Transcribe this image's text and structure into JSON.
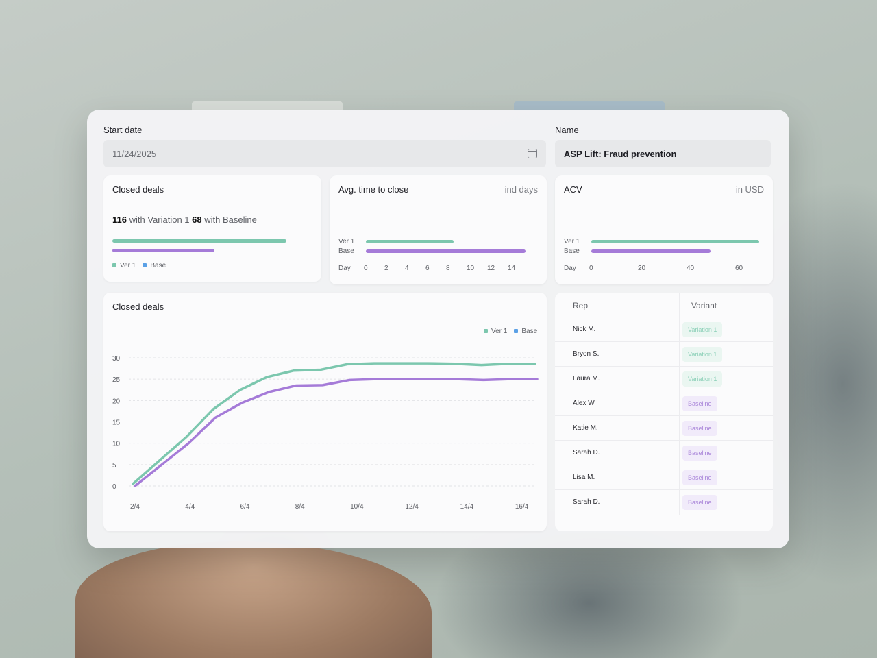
{
  "form": {
    "start_date_label": "Start date",
    "start_date_value": "11/24/2025",
    "name_label": "Name",
    "name_value": "ASP Lift: Fraud prevention"
  },
  "closed_deals_card": {
    "title": "Closed deals",
    "variation_count": "116",
    "variation_text": "with Variation 1",
    "baseline_count": "68",
    "baseline_text": "with Baseline",
    "legend": [
      "Ver 1",
      "Base"
    ],
    "ver1_fraction": 0.87,
    "base_fraction": 0.51
  },
  "avg_time_card": {
    "title": "Avg. time to close",
    "unit": "ind days",
    "row_labels": [
      "Ver 1",
      "Base"
    ],
    "axis_label": "Day",
    "ticks": [
      "0",
      "2",
      "4",
      "6",
      "8",
      "10",
      "12",
      "14"
    ],
    "ver1_value": 8.5,
    "base_value": 15.5
  },
  "acv_card": {
    "title": "ACV",
    "unit": "in USD",
    "row_labels": [
      "Ver 1",
      "Base"
    ],
    "axis_label": "Day",
    "ticks": [
      "0",
      "20",
      "40",
      "60"
    ],
    "ver1_value": 69,
    "base_value": 49
  },
  "chart_data": {
    "type": "line",
    "title": "Closed deals",
    "x": [
      "2/4",
      "3/4",
      "4/4",
      "5/4",
      "6/4",
      "7/4",
      "8/4",
      "9/4",
      "10/4",
      "11/4",
      "12/4",
      "13/4",
      "14/4",
      "15/4",
      "16/4",
      "17/4"
    ],
    "x_ticks": [
      "2/4",
      "4/4",
      "6/4",
      "8/4",
      "10/4",
      "12/4",
      "14/4",
      "16/4"
    ],
    "y_ticks": [
      "0",
      "5",
      "10",
      "15",
      "20",
      "25",
      "30"
    ],
    "ylim": [
      0,
      30
    ],
    "grid": true,
    "legend": "top-right",
    "series": [
      {
        "name": "Ver 1",
        "color": "#7cc7ae",
        "values": [
          0.5,
          6,
          11.5,
          18,
          22.5,
          25.5,
          27,
          27.2,
          28.5,
          28.7,
          28.7,
          28.7,
          28.6,
          28.3,
          28.6,
          28.6
        ]
      },
      {
        "name": "Base",
        "color": "#a57bd8",
        "values": [
          0,
          5,
          10,
          16,
          19.5,
          22,
          23.5,
          23.6,
          24.8,
          25,
          25,
          25,
          25,
          24.8,
          25,
          25
        ]
      }
    ]
  },
  "reps_table": {
    "headers": {
      "rep": "Rep",
      "variant": "Variant"
    },
    "rows": [
      {
        "rep": "Nick M.",
        "variant": "Variation 1",
        "kind": "v"
      },
      {
        "rep": "Bryon S.",
        "variant": "Variation 1",
        "kind": "v"
      },
      {
        "rep": "Laura M.",
        "variant": "Variation 1",
        "kind": "v"
      },
      {
        "rep": "Alex W.",
        "variant": "Baseline",
        "kind": "b"
      },
      {
        "rep": "Katie M.",
        "variant": "Baseline",
        "kind": "b"
      },
      {
        "rep": "Sarah D.",
        "variant": "Baseline",
        "kind": "b"
      },
      {
        "rep": "Lisa M.",
        "variant": "Baseline",
        "kind": "b"
      },
      {
        "rep": "Sarah D.",
        "variant": "Baseline",
        "kind": "b"
      }
    ]
  }
}
